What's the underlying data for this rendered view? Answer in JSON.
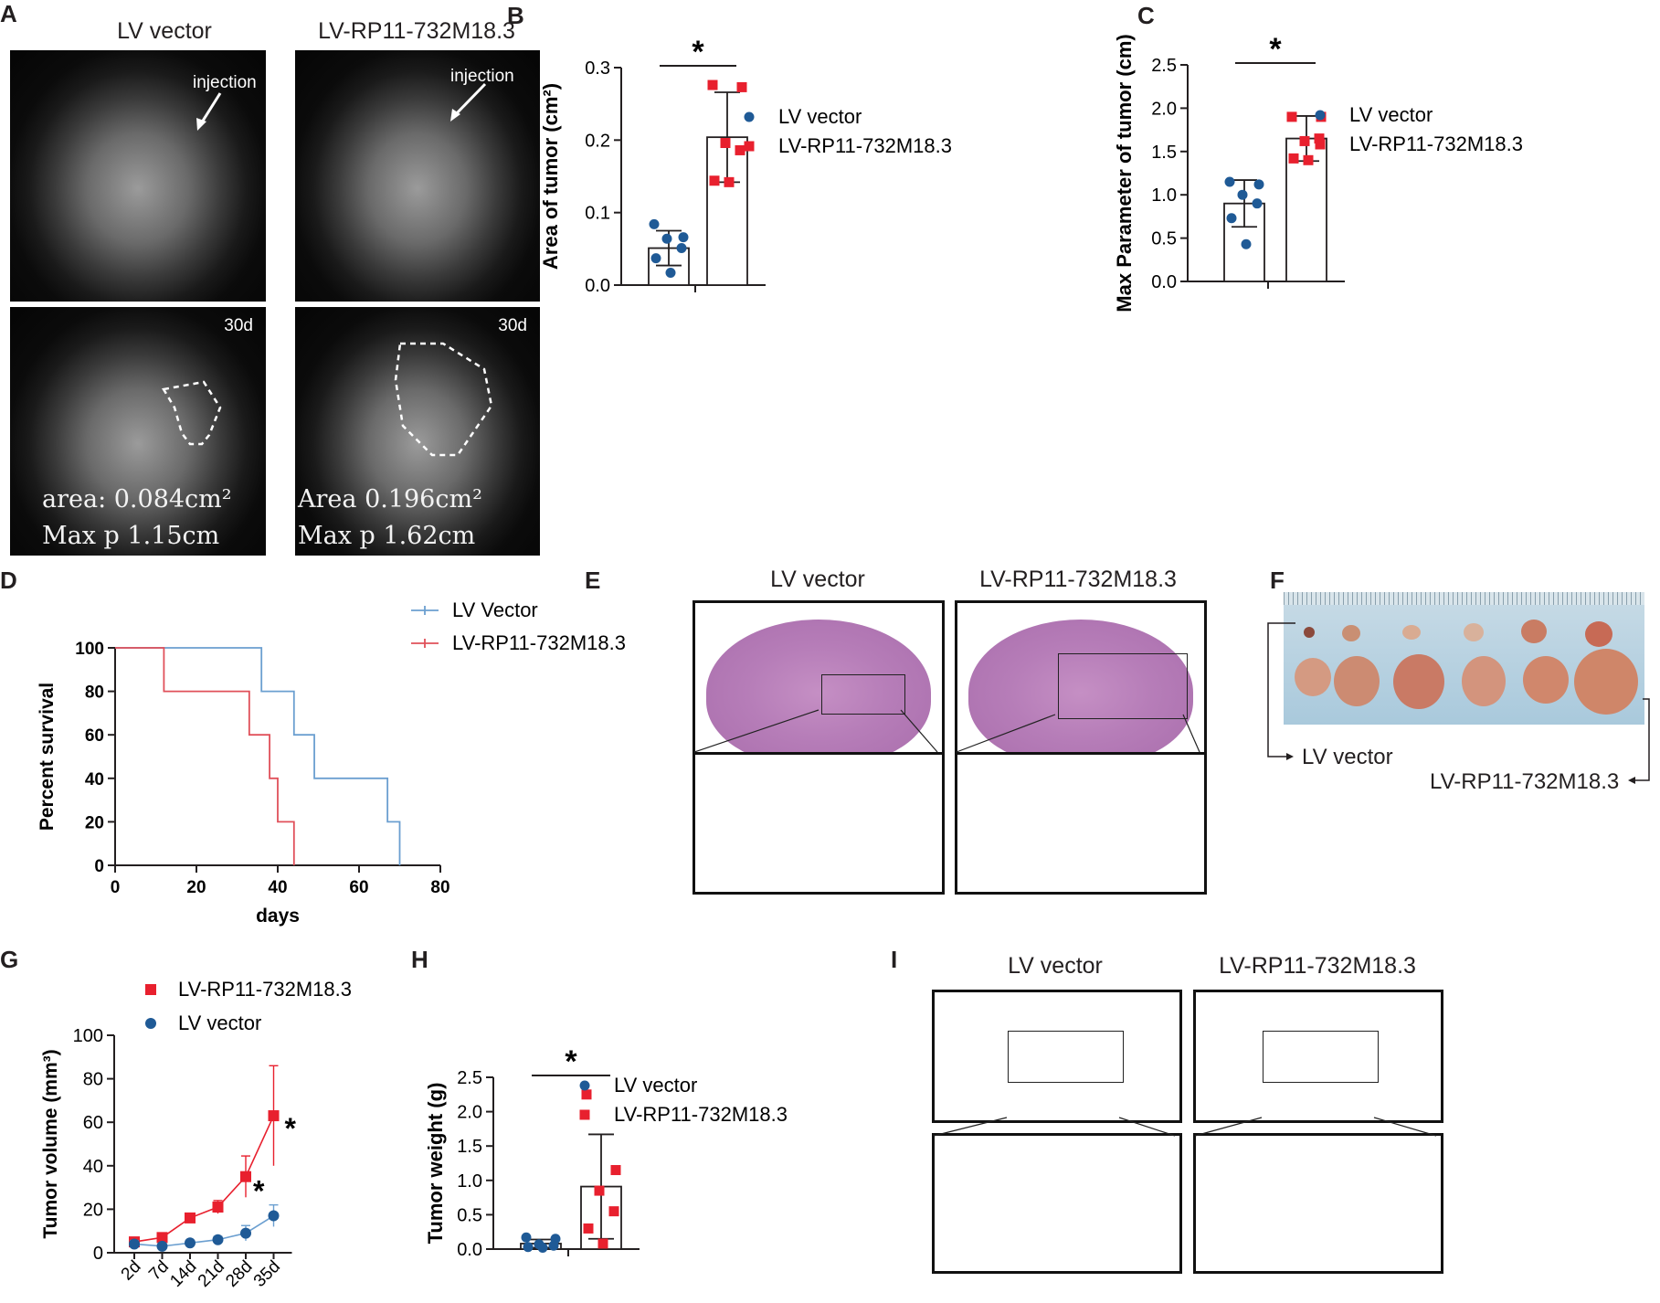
{
  "panel_letters": [
    "A",
    "B",
    "C",
    "D",
    "E",
    "F",
    "G",
    "H",
    "I"
  ],
  "panelA": {
    "group_labels": [
      "LV vector",
      "LV-RP11-732M18.3"
    ],
    "injection_label": "injection",
    "timepoint": "30d",
    "left_area": "area: 0.084cm²",
    "left_maxp": "Max p 1.15cm",
    "right_area": "Area 0.196cm²",
    "right_maxp": "Max p 1.62cm"
  },
  "panelE": {
    "group_labels": [
      "LV vector",
      "LV-RP11-732M18.3"
    ]
  },
  "panelF": {
    "label_left": "LV vector",
    "label_right": "LV-RP11-732M18.3"
  },
  "panelI": {
    "group_labels": [
      "LV vector",
      "LV-RP11-732M18.3"
    ]
  },
  "colors": {
    "blue": "#1f5a96",
    "red": "#e8202e",
    "axis": "#231f20",
    "survival_blue": "#6b9fd0",
    "survival_red": "#e0505a"
  },
  "chart_data": [
    {
      "id": "B",
      "type": "bar",
      "ylabel": "Area of tumor (cm²)",
      "ylim": [
        0,
        0.3
      ],
      "yticks": [
        "0.0",
        "0.1",
        "0.2",
        "0.3"
      ],
      "significance": "*",
      "legend": [
        "LV vector",
        "LV-RP11-732M18.3"
      ],
      "series": [
        {
          "name": "LV vector",
          "mean": 0.051,
          "sd": 0.024,
          "points": [
            0.084,
            0.066,
            0.064,
            0.051,
            0.037,
            0.017
          ]
        },
        {
          "name": "LV-RP11-732M18.3",
          "mean": 0.204,
          "sd": 0.062,
          "points": [
            0.276,
            0.273,
            0.196,
            0.186,
            0.144,
            0.142
          ]
        }
      ]
    },
    {
      "id": "C",
      "type": "bar",
      "ylabel": "Max Parameter of tumor (cm)",
      "ylim": [
        0,
        2.5
      ],
      "yticks": [
        "0.0",
        "0.5",
        "1.0",
        "1.5",
        "2.0",
        "2.5"
      ],
      "significance": "*",
      "legend": [
        "LV vector",
        "LV-RP11-732M18.3"
      ],
      "series": [
        {
          "name": "LV vector",
          "mean": 0.9,
          "sd": 0.27,
          "points": [
            1.15,
            1.12,
            1.0,
            0.9,
            0.73,
            0.43
          ]
        },
        {
          "name": "LV-RP11-732M18.3",
          "mean": 1.65,
          "sd": 0.26,
          "points": [
            1.9,
            1.9,
            1.62,
            1.65,
            1.42,
            1.4
          ]
        }
      ]
    },
    {
      "id": "D",
      "type": "line",
      "xlabel": "days",
      "ylabel": "Percent survival",
      "xlim": [
        0,
        80
      ],
      "ylim": [
        0,
        100
      ],
      "xticks": [
        "0",
        "20",
        "40",
        "60",
        "80"
      ],
      "yticks": [
        "0",
        "20",
        "40",
        "60",
        "80",
        "100"
      ],
      "legend": [
        "LV Vector",
        "LV-RP11-732M18.3"
      ],
      "series": [
        {
          "name": "LV Vector",
          "x": [
            0,
            36,
            36,
            44,
            44,
            49,
            49,
            67,
            67,
            70,
            70
          ],
          "y": [
            100,
            100,
            80,
            80,
            60,
            60,
            40,
            40,
            20,
            20,
            0
          ]
        },
        {
          "name": "LV-RP11-732M18.3",
          "x": [
            0,
            12,
            12,
            33,
            33,
            38,
            38,
            40,
            40,
            44,
            44
          ],
          "y": [
            100,
            100,
            80,
            80,
            60,
            60,
            40,
            40,
            20,
            20,
            0
          ]
        }
      ]
    },
    {
      "id": "G",
      "type": "line",
      "ylabel": "Tumor volume (mm³)",
      "ylim": [
        0,
        100
      ],
      "yticks": [
        "0",
        "20",
        "40",
        "60",
        "80",
        "100"
      ],
      "categories": [
        "2d",
        "7d",
        "14d",
        "21d",
        "28d",
        "35d"
      ],
      "legend": [
        "LV-RP11-732M18.3",
        "LV vector"
      ],
      "significance": [
        "*",
        "*"
      ],
      "series": [
        {
          "name": "LV-RP11-732M18.3",
          "values": [
            5,
            7,
            16,
            21,
            35,
            63
          ],
          "err": [
            1.5,
            1.5,
            2,
            3,
            9.5,
            23
          ]
        },
        {
          "name": "LV vector",
          "values": [
            4,
            3,
            4.5,
            6,
            9,
            17
          ],
          "err": [
            1.5,
            1,
            1,
            1.5,
            3.5,
            5
          ]
        }
      ]
    },
    {
      "id": "H",
      "type": "bar",
      "ylabel": "Tumor weight (g)",
      "ylim": [
        0,
        2.5
      ],
      "yticks": [
        "0.0",
        "0.5",
        "1.0",
        "1.5",
        "2.0",
        "2.5"
      ],
      "significance": "*",
      "legend": [
        "LV vector",
        "LV-RP11-732M18.3"
      ],
      "series": [
        {
          "name": "LV vector",
          "mean": 0.08,
          "sd": 0.06,
          "points": [
            0.17,
            0.15,
            0.07,
            0.05,
            0.03,
            0.02
          ]
        },
        {
          "name": "LV-RP11-732M18.3",
          "mean": 0.91,
          "sd": 0.76,
          "points": [
            2.25,
            1.15,
            0.85,
            0.55,
            0.3,
            0.08
          ]
        }
      ]
    }
  ]
}
